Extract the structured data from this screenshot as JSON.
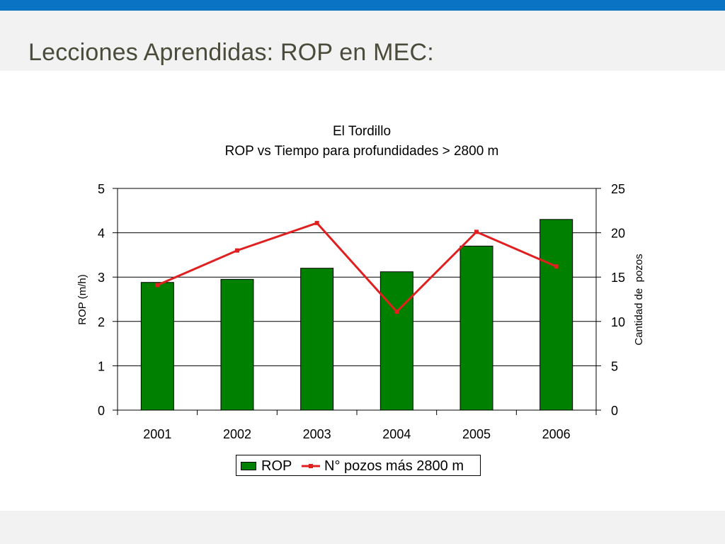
{
  "slide": {
    "title": "Lecciones Aprendidas: ROP en MEC:"
  },
  "colors": {
    "topbar": "#0a73c4",
    "bar": "#008000",
    "line": "#e02020",
    "title_text": "#4b4b3b"
  },
  "chart_data": {
    "type": "bar",
    "title": "El Tordillo",
    "subtitle": "ROP vs Tiempo para profundidades > 2800 m",
    "categories": [
      "2001",
      "2002",
      "2003",
      "2004",
      "2005",
      "2006"
    ],
    "series": [
      {
        "name": "ROP",
        "type": "bar",
        "axis": "left",
        "values": [
          2.88,
          2.95,
          3.2,
          3.12,
          3.7,
          4.3
        ]
      },
      {
        "name": "N° pozos más 2800 m",
        "type": "line",
        "axis": "right",
        "values": [
          14.1,
          18.0,
          21.1,
          11.1,
          20.1,
          16.2
        ]
      }
    ],
    "ylabel": "ROP (m/h)",
    "y2label": "Cantidad de  pozos",
    "ylim": [
      0,
      5
    ],
    "y2lim": [
      0,
      25
    ],
    "yticks": [
      "0",
      "1",
      "2",
      "3",
      "4",
      "5"
    ],
    "y2ticks": [
      "0",
      "5",
      "10",
      "15",
      "20",
      "25"
    ],
    "grid": true,
    "legend": "bottom"
  }
}
